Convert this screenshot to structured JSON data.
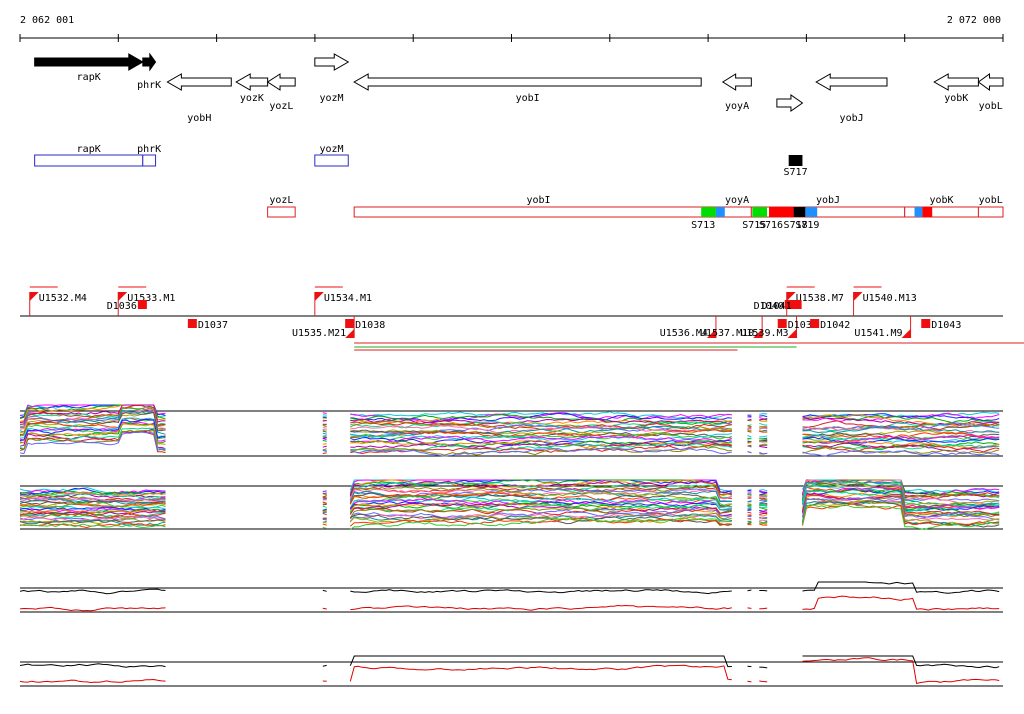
{
  "scale": {
    "start_label": "2 062 001",
    "end_label": "2 072 000",
    "start": 2062001,
    "end": 2072000
  },
  "genes": [
    {
      "name": "rapK",
      "strand": "+",
      "filled": true,
      "start": 2062150,
      "end": 2063250
    },
    {
      "name": "phrK",
      "strand": "+",
      "filled": true,
      "start": 2063250,
      "end": 2063380
    },
    {
      "name": "yobH",
      "strand": "-",
      "filled": false,
      "start": 2063500,
      "end": 2064150
    },
    {
      "name": "yozK",
      "strand": "-",
      "filled": false,
      "start": 2064200,
      "end": 2064520
    },
    {
      "name": "yozL",
      "strand": "-",
      "filled": false,
      "start": 2064520,
      "end": 2064800
    },
    {
      "name": "yozM",
      "strand": "+",
      "filled": false,
      "start": 2065000,
      "end": 2065340
    },
    {
      "name": "yobI",
      "strand": "-",
      "filled": false,
      "start": 2065400,
      "end": 2068930
    },
    {
      "name": "yoyA",
      "strand": "-",
      "filled": false,
      "start": 2069150,
      "end": 2069440
    },
    {
      "name": "yobJ",
      "strand": "-",
      "filled": false,
      "start": 2070100,
      "end": 2070820
    },
    {
      "name": "yobK",
      "strand": "-",
      "filled": false,
      "start": 2071300,
      "end": 2071750
    },
    {
      "name": "yobL",
      "strand": "-",
      "filled": false,
      "start": 2071750,
      "end": 2072000
    },
    {
      "name": "",
      "strand": "+",
      "filled": false,
      "start": 2069700,
      "end": 2069960
    }
  ],
  "forward_transcripts": [
    {
      "name": "rapK",
      "start": 2062150,
      "end": 2063250
    },
    {
      "name": "phrK",
      "start": 2063250,
      "end": 2063380
    },
    {
      "name": "yozM",
      "start": 2065000,
      "end": 2065340
    }
  ],
  "forward_small": [
    {
      "name": "S717",
      "start": 2069820,
      "end": 2069960
    }
  ],
  "reverse_transcripts": [
    {
      "name": "yozL",
      "start": 2064520,
      "end": 2064800
    },
    {
      "name": "yobI",
      "start": 2065400,
      "end": 2069150
    },
    {
      "name": "yoyA",
      "start": 2069150,
      "end": 2069440
    },
    {
      "name": "yobJ",
      "start": 2069440,
      "end": 2071000
    },
    {
      "name": "yobK",
      "start": 2071000,
      "end": 2071750
    },
    {
      "name": "yobL",
      "start": 2071750,
      "end": 2072000
    }
  ],
  "reverse_segments": [
    {
      "label": "S713",
      "color": "#00dd00",
      "start": 2068930,
      "end": 2069080
    },
    {
      "label": "",
      "color": "#1e90ff",
      "start": 2069080,
      "end": 2069170
    },
    {
      "label": "S715",
      "color": "#00dd00",
      "start": 2069450,
      "end": 2069600
    },
    {
      "label": "S716",
      "color": "#ff0000",
      "start": 2069620,
      "end": 2069870
    },
    {
      "label": "S718",
      "color": "#000000",
      "start": 2069870,
      "end": 2069990
    },
    {
      "label": "S719",
      "color": "#1e90ff",
      "start": 2069990,
      "end": 2070110
    },
    {
      "label": "",
      "color": "#1e90ff",
      "start": 2071100,
      "end": 2071180
    },
    {
      "label": "",
      "color": "#ff0000",
      "start": 2071180,
      "end": 2071280
    }
  ],
  "upshifts_top": [
    {
      "label": "U1532.M4",
      "pos": 2062100
    },
    {
      "label": "U1533.M1",
      "pos": 2063000
    },
    {
      "label": "U1534.M1",
      "pos": 2065000
    },
    {
      "label": "U1538.M7",
      "pos": 2069800
    },
    {
      "label": "U1540.M13",
      "pos": 2070480
    }
  ],
  "downshifts_top": [
    {
      "label": "D1036",
      "pos": 2063200
    },
    {
      "label": "D1040",
      "pos": 2069780
    },
    {
      "label": "D1041",
      "pos": 2069860
    }
  ],
  "upshifts_bottom": [
    {
      "label": "U1535.M21",
      "pos": 2065400
    },
    {
      "label": "U1536.M4",
      "pos": 2069080
    },
    {
      "label": "U1537.M10",
      "pos": 2069550
    },
    {
      "label": "U1539.M3",
      "pos": 2069900
    },
    {
      "label": "U1541.M9",
      "pos": 2071060
    }
  ],
  "downshifts_bottom": [
    {
      "label": "D1037",
      "pos": 2063800
    },
    {
      "label": "D1038",
      "pos": 2065400
    },
    {
      "label": "D1039",
      "pos": 2069800
    },
    {
      "label": "D1042",
      "pos": 2070130
    },
    {
      "label": "D1043",
      "pos": 2071260
    }
  ],
  "track_gaps": [
    [
      2063490,
      2065080
    ],
    [
      2065140,
      2065340
    ],
    [
      2069260,
      2069300
    ],
    [
      2069350,
      2069400
    ],
    [
      2069460,
      2069520
    ],
    [
      2069620,
      2069700
    ],
    [
      2069740,
      2069780
    ],
    [
      2069810,
      2069960
    ]
  ]
}
